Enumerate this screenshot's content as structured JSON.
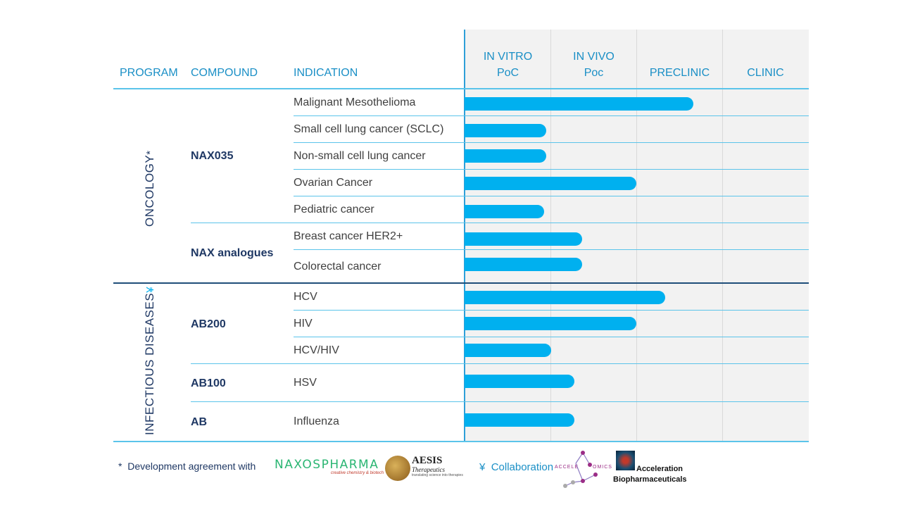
{
  "header": {
    "program": "PROGRAM",
    "compound": "COMPOUND",
    "indication": "INDICATION",
    "stages": [
      {
        "line1": "IN VITRO",
        "line2": "PoC"
      },
      {
        "line1": "IN VIVO",
        "line2": "Poc"
      },
      {
        "line1": "PRECLINIC",
        "line2": ""
      },
      {
        "line1": "CLINIC",
        "line2": ""
      }
    ]
  },
  "programs": [
    {
      "name": "ONCOLOGY",
      "mark": "*"
    },
    {
      "name": "INFECTIOUS DISEASES",
      "mark": "¥"
    }
  ],
  "compounds": [
    "NAX035",
    "NAX analogues",
    "AB200",
    "AB100",
    "AB"
  ],
  "chart_data": {
    "type": "bar",
    "orientation": "horizontal",
    "x_axis_unit": "development stage (0 = start of IN VITRO PoC, 4 = end of CLINIC)",
    "stages": [
      "IN VITRO PoC",
      "IN VIVO Poc",
      "PRECLINIC",
      "CLINIC"
    ],
    "xlim": [
      0,
      4
    ],
    "rows": [
      {
        "program": "ONCOLOGY",
        "compound": "NAX035",
        "indication": "Malignant Mesothelioma",
        "progress": 2.66
      },
      {
        "program": "ONCOLOGY",
        "compound": "NAX035",
        "indication": "Small cell lung cancer (SCLC)",
        "progress": 0.95
      },
      {
        "program": "ONCOLOGY",
        "compound": "NAX035",
        "indication": "Non-small cell lung cancer",
        "progress": 0.95
      },
      {
        "program": "ONCOLOGY",
        "compound": "NAX035",
        "indication": "Ovarian Cancer",
        "progress": 2.0
      },
      {
        "program": "ONCOLOGY",
        "compound": "NAX035",
        "indication": "Pediatric cancer",
        "progress": 0.93
      },
      {
        "program": "ONCOLOGY",
        "compound": "NAX analogues",
        "indication": "Breast cancer HER2+",
        "progress": 1.37
      },
      {
        "program": "ONCOLOGY",
        "compound": "NAX analogues",
        "indication": "Colorectal cancer",
        "progress": 1.37
      },
      {
        "program": "INFECTIOUS DISEASES",
        "compound": "AB200",
        "indication": "HCV",
        "progress": 2.34
      },
      {
        "program": "INFECTIOUS DISEASES",
        "compound": "AB200",
        "indication": "HIV",
        "progress": 2.0
      },
      {
        "program": "INFECTIOUS DISEASES",
        "compound": "AB200",
        "indication": "HCV/HIV",
        "progress": 1.01
      },
      {
        "program": "INFECTIOUS DISEASES",
        "compound": "AB100",
        "indication": "HSV",
        "progress": 1.28
      },
      {
        "program": "INFECTIOUS DISEASES",
        "compound": "AB",
        "indication": "Influenza",
        "progress": 1.28
      }
    ]
  },
  "footer": {
    "dev_mark": "*",
    "dev_text": "Development agreement with",
    "naxos_name": "NAXOSPHARMA",
    "naxos_tagline": "creative chemistry & biotech",
    "aesis_name": "AESIS",
    "aesis_sub": "Therapeutics",
    "aesis_tagline": "translating science into therapies",
    "collab_mark": "¥",
    "collab_text": "Collaboration",
    "acceleomics_left": "ACCELE",
    "acceleomics_right": "OMICS",
    "accel_bio_line1": "Acceleration",
    "accel_bio_line2": "Biopharmaceuticals"
  },
  "colors": {
    "bar": "#00b0ef",
    "header_text": "#1a8fc6",
    "compound_text": "#1f3864",
    "rule": "#5bc4ea",
    "naxos": "#2bb673"
  }
}
